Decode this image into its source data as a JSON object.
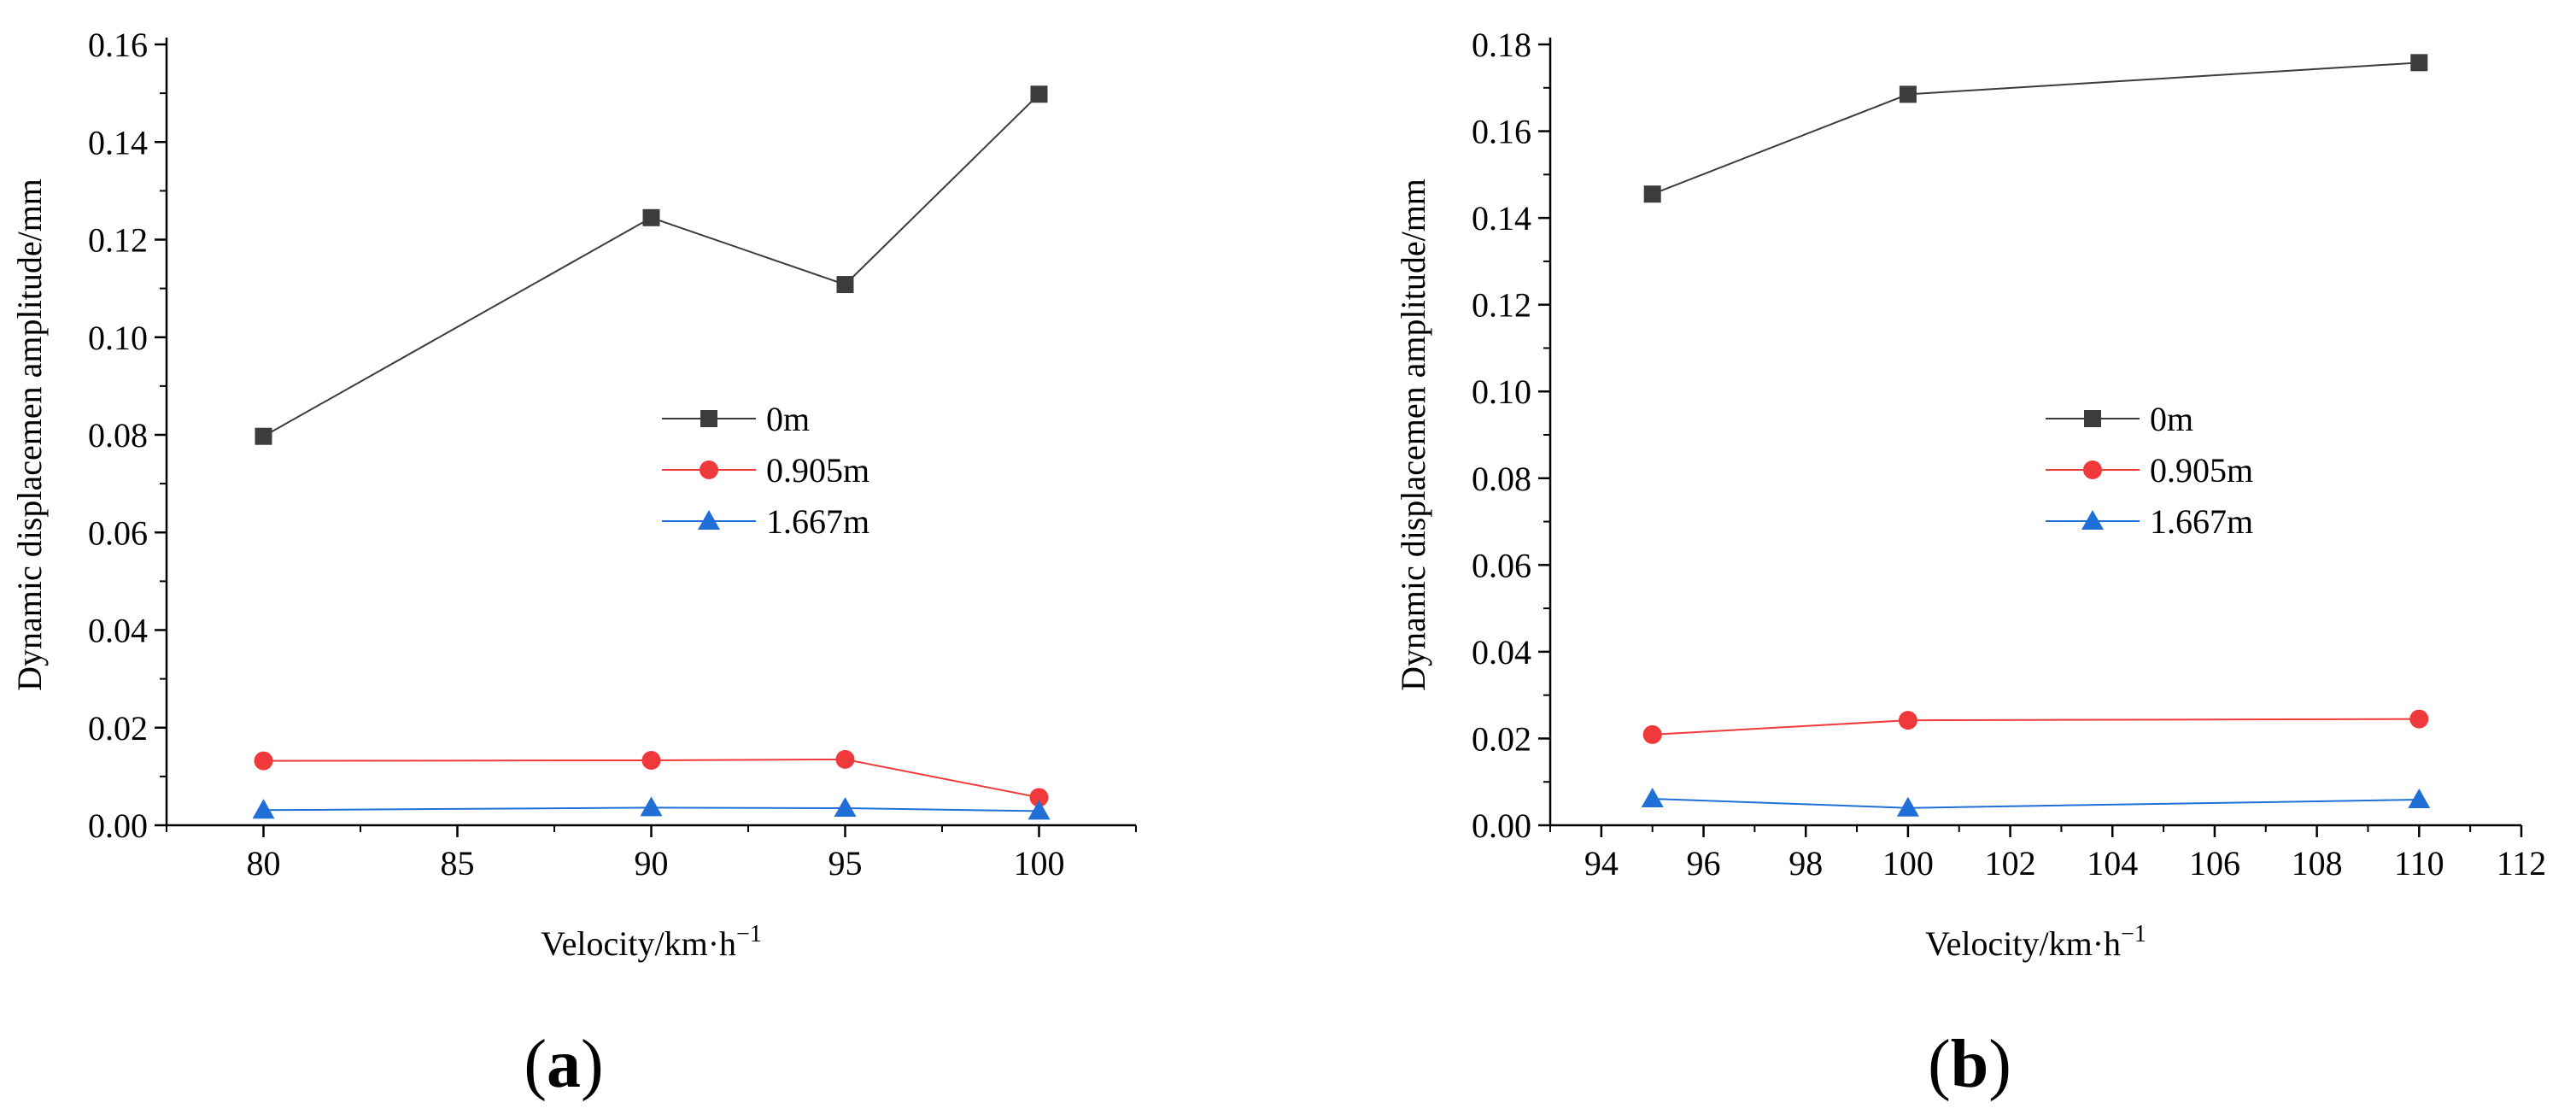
{
  "figure_labels": [
    "a",
    "b"
  ],
  "colors": {
    "0m": "#3c3c3c",
    "0.905m": "#f0393b",
    "1.667m": "#1f6fd6",
    "axis": "#000000"
  },
  "chart_data": [
    {
      "type": "line",
      "panel": "a",
      "xlabel": "Velocity/km·h",
      "xlabel_sup": "−1",
      "ylabel": "Dynamic displacemen amplitude/mm",
      "xlim": [
        77.5,
        102.5
      ],
      "ylim": [
        0,
        0.16
      ],
      "xticks": [
        80,
        85,
        90,
        95,
        100
      ],
      "xtick_labels": [
        "80",
        "85",
        "90",
        "95",
        "100"
      ],
      "yticks": [
        0,
        0.02,
        0.04,
        0.06,
        0.08,
        0.1,
        0.12,
        0.14,
        0.16
      ],
      "ytick_labels": [
        "0.00",
        "0.02",
        "0.04",
        "0.06",
        "0.08",
        "0.10",
        "0.12",
        "0.14",
        "0.16"
      ],
      "legend_position": "center",
      "series": [
        {
          "name": "0m",
          "marker": "square",
          "color": "#3c3c3c",
          "x": [
            80,
            90,
            95,
            100
          ],
          "y": [
            0.0797,
            0.1245,
            0.1108,
            0.1498
          ]
        },
        {
          "name": "0.905m",
          "marker": "circle",
          "color": "#f0393b",
          "x": [
            80,
            90,
            95,
            100
          ],
          "y": [
            0.0132,
            0.0133,
            0.0135,
            0.0057
          ]
        },
        {
          "name": "1.667m",
          "marker": "triangle",
          "color": "#1f6fd6",
          "x": [
            80,
            90,
            95,
            100
          ],
          "y": [
            0.0031,
            0.0036,
            0.0035,
            0.0029
          ]
        }
      ]
    },
    {
      "type": "line",
      "panel": "b",
      "xlabel": "Velocity/km·h",
      "xlabel_sup": "−1",
      "ylabel": "Dynamic displacemen amplitude/mm",
      "xlim": [
        93,
        112
      ],
      "ylim": [
        0,
        0.18
      ],
      "xticks": [
        94,
        96,
        98,
        100,
        102,
        104,
        106,
        108,
        110,
        112
      ],
      "xtick_labels": [
        "94",
        "96",
        "98",
        "100",
        "102",
        "104",
        "106",
        "108",
        "110",
        "112"
      ],
      "yticks": [
        0,
        0.02,
        0.04,
        0.06,
        0.08,
        0.1,
        0.12,
        0.14,
        0.16,
        0.18
      ],
      "ytick_labels": [
        "0.00",
        "0.02",
        "0.04",
        "0.06",
        "0.08",
        "0.10",
        "0.12",
        "0.14",
        "0.16",
        "0.18"
      ],
      "legend_position": "center",
      "series": [
        {
          "name": "0m",
          "marker": "square",
          "color": "#3c3c3c",
          "x": [
            95,
            100,
            110
          ],
          "y": [
            0.1455,
            0.1685,
            0.1758
          ]
        },
        {
          "name": "0.905m",
          "marker": "circle",
          "color": "#f0393b",
          "x": [
            95,
            100,
            110
          ],
          "y": [
            0.0209,
            0.0242,
            0.0245
          ]
        },
        {
          "name": "1.667m",
          "marker": "triangle",
          "color": "#1f6fd6",
          "x": [
            95,
            100,
            110
          ],
          "y": [
            0.0061,
            0.004,
            0.0059
          ]
        }
      ]
    }
  ]
}
